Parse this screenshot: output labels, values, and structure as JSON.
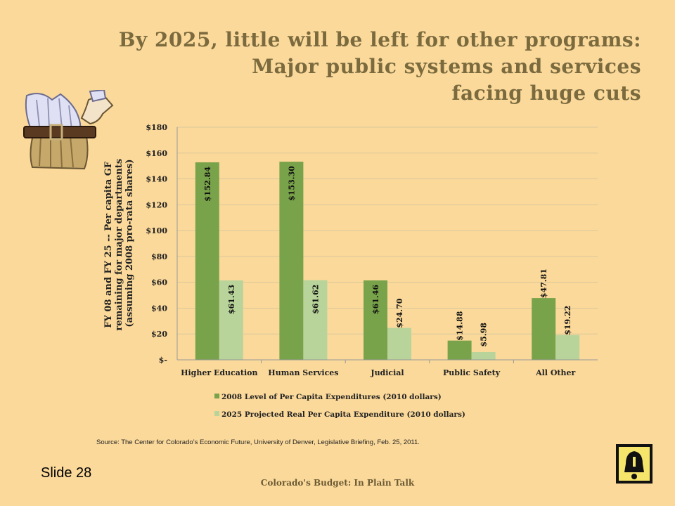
{
  "title": {
    "line1": "By 2025, little will be left for other programs:",
    "line2": "Major public systems and services",
    "line3": "facing huge cuts"
  },
  "chart_data": {
    "type": "bar",
    "categories": [
      "Higher Education",
      "Human Services",
      "Judicial",
      "Public Safety",
      "All Other"
    ],
    "series": [
      {
        "name": "2008 Level of Per Capita Expenditures (2010 dollars)",
        "values": [
          152.84,
          153.3,
          61.46,
          14.88,
          47.81
        ],
        "labels": [
          "$152.84",
          "$153.30",
          "$61.46",
          "$14.88",
          "$47.81"
        ],
        "color": "#79a34a"
      },
      {
        "name": "2025 Projected Real Per Capita Expenditure (2010 dollars)",
        "values": [
          61.43,
          61.62,
          24.7,
          5.98,
          19.22
        ],
        "labels": [
          "$61.43",
          "$61.62",
          "$24.70",
          "$5.98",
          "$19.22"
        ],
        "color": "#b9d49a"
      }
    ],
    "ylabel_lines": [
      "FY 08 and FY 25 -- Per capita GF",
      "remaining for major departments",
      "(assuming 2008 pro-rata shares)"
    ],
    "ylim": [
      0,
      180
    ],
    "yticks": [
      0,
      20,
      40,
      60,
      80,
      100,
      120,
      140,
      160,
      180
    ],
    "ytick_labels": [
      "$-",
      "$20",
      "$40",
      "$60",
      "$80",
      "$100",
      "$120",
      "$140",
      "$160",
      "$180"
    ],
    "grid": true,
    "legend_position": "bottom"
  },
  "source": "Source: The Center for Colorado’s Economic Future, University of Denver, Legislative Briefing, Feb. 25, 2011.",
  "slide_number": "Slide 28",
  "footer": "Colorado's Budget: In Plain Talk",
  "icons": {
    "clipart": "belt-tightening-hands-icon",
    "logo": "bell-logo-icon"
  }
}
